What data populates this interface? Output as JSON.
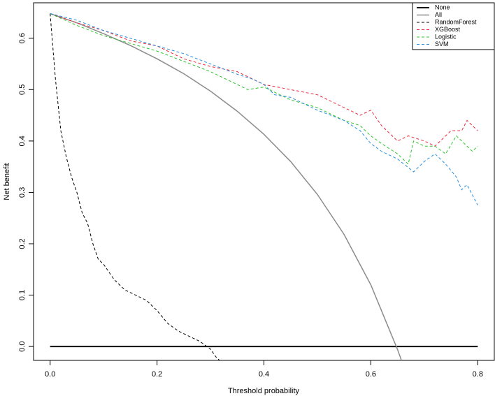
{
  "chart_data": {
    "type": "line",
    "xlabel": "Threshold probability",
    "ylabel": "Net benefit",
    "xlim": [
      -0.031,
      0.831
    ],
    "ylim": [
      -0.027,
      0.669
    ],
    "xticks": [
      {
        "value": 0,
        "label": "0.0"
      },
      0.2,
      0.4,
      0.6,
      0.8
    ],
    "yticks": [
      {
        "value": 0,
        "label": "0.0"
      },
      0.1,
      0.2,
      0.3,
      0.4,
      0.5,
      0.6
    ],
    "legend": "top-right",
    "series": [
      {
        "name": "None",
        "color": "#000000",
        "dashed": false,
        "width": 2,
        "x": [
          0,
          0.8
        ],
        "values": [
          0,
          0
        ]
      },
      {
        "name": "All",
        "color": "#8c8c8c",
        "dashed": false,
        "width": 1.5,
        "x": [
          0,
          0.05,
          0.1,
          0.15,
          0.2,
          0.25,
          0.3,
          0.35,
          0.4,
          0.45,
          0.5,
          0.55,
          0.6,
          0.65,
          0.66
        ],
        "values": [
          0.648,
          0.63,
          0.609,
          0.586,
          0.56,
          0.531,
          0.497,
          0.458,
          0.413,
          0.36,
          0.296,
          0.218,
          0.12,
          -0.006,
          -0.035
        ]
      },
      {
        "name": "RandomForest",
        "color": "#000000",
        "dashed": true,
        "width": 1,
        "x": [
          0,
          0.01,
          0.02,
          0.03,
          0.04,
          0.05,
          0.06,
          0.07,
          0.08,
          0.09,
          0.1,
          0.12,
          0.14,
          0.16,
          0.18,
          0.2,
          0.22,
          0.24,
          0.26,
          0.28,
          0.3,
          0.31,
          0.32
        ],
        "values": [
          0.648,
          0.52,
          0.42,
          0.37,
          0.33,
          0.3,
          0.26,
          0.24,
          0.2,
          0.17,
          0.16,
          0.13,
          0.11,
          0.1,
          0.09,
          0.07,
          0.045,
          0.03,
          0.02,
          0.01,
          -0.005,
          -0.02,
          -0.03
        ]
      },
      {
        "name": "XGBoost",
        "color": "#e8293c",
        "dashed": true,
        "width": 1,
        "x": [
          0,
          0.05,
          0.1,
          0.15,
          0.2,
          0.25,
          0.3,
          0.35,
          0.4,
          0.45,
          0.5,
          0.55,
          0.58,
          0.6,
          0.62,
          0.65,
          0.67,
          0.7,
          0.72,
          0.75,
          0.77,
          0.78,
          0.8
        ],
        "values": [
          0.648,
          0.63,
          0.615,
          0.595,
          0.585,
          0.56,
          0.545,
          0.535,
          0.51,
          0.5,
          0.49,
          0.465,
          0.45,
          0.46,
          0.43,
          0.4,
          0.41,
          0.4,
          0.39,
          0.42,
          0.42,
          0.44,
          0.42
        ]
      },
      {
        "name": "Logistic",
        "color": "#2ec42e",
        "dashed": true,
        "width": 1,
        "x": [
          0,
          0.05,
          0.1,
          0.15,
          0.2,
          0.25,
          0.3,
          0.35,
          0.37,
          0.4,
          0.45,
          0.5,
          0.55,
          0.58,
          0.6,
          0.62,
          0.65,
          0.67,
          0.68,
          0.7,
          0.72,
          0.74,
          0.76,
          0.78,
          0.79,
          0.8
        ],
        "values": [
          0.648,
          0.625,
          0.605,
          0.59,
          0.575,
          0.555,
          0.535,
          0.51,
          0.5,
          0.505,
          0.48,
          0.465,
          0.44,
          0.43,
          0.41,
          0.395,
          0.375,
          0.355,
          0.4,
          0.39,
          0.39,
          0.375,
          0.41,
          0.39,
          0.38,
          0.39
        ]
      },
      {
        "name": "SVM",
        "color": "#2b8fe0",
        "dashed": true,
        "width": 1,
        "x": [
          0,
          0.05,
          0.1,
          0.15,
          0.2,
          0.25,
          0.3,
          0.35,
          0.38,
          0.4,
          0.42,
          0.45,
          0.5,
          0.55,
          0.58,
          0.6,
          0.62,
          0.65,
          0.68,
          0.7,
          0.72,
          0.74,
          0.76,
          0.77,
          0.78,
          0.8
        ],
        "values": [
          0.648,
          0.635,
          0.615,
          0.6,
          0.585,
          0.57,
          0.55,
          0.53,
          0.52,
          0.51,
          0.49,
          0.485,
          0.46,
          0.44,
          0.42,
          0.395,
          0.38,
          0.365,
          0.34,
          0.36,
          0.375,
          0.355,
          0.33,
          0.305,
          0.315,
          0.275
        ]
      }
    ]
  }
}
